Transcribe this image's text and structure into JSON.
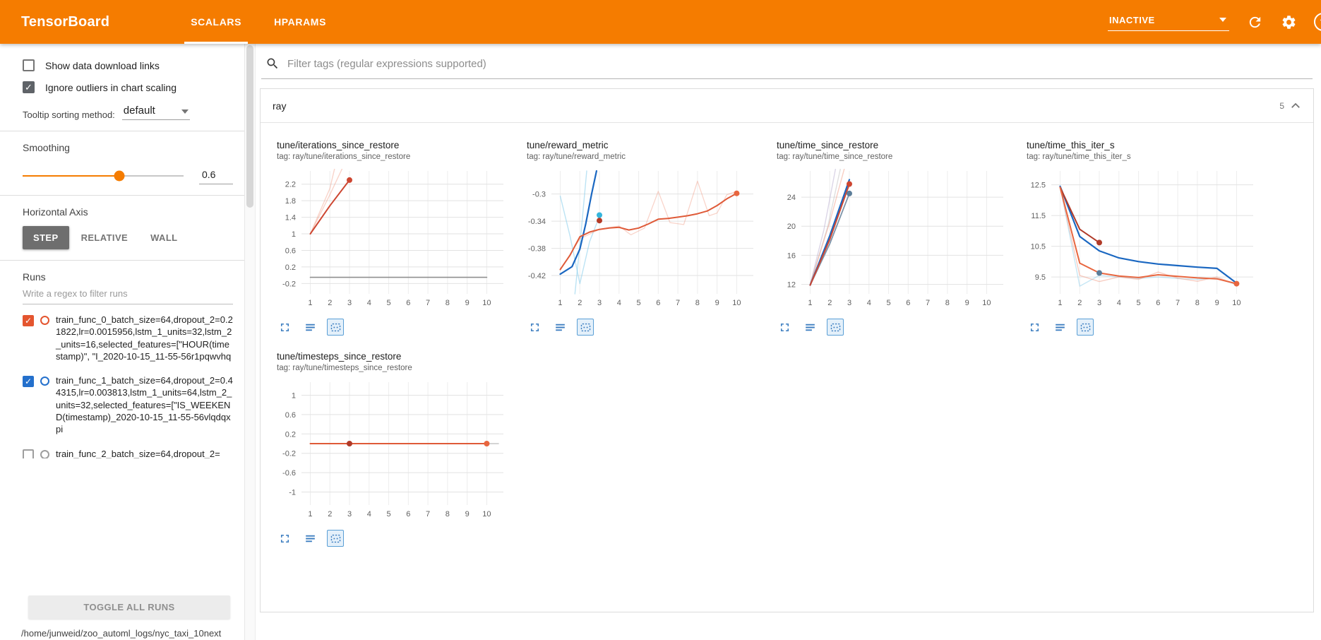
{
  "header": {
    "app_title": "TensorBoard",
    "tabs": [
      {
        "label": "SCALARS",
        "active": true
      },
      {
        "label": "HPARAMS",
        "active": false
      }
    ],
    "status": {
      "label": "INACTIVE"
    },
    "icons": [
      "dropdown-caret-icon",
      "reload-icon",
      "settings-gear-icon",
      "help-icon"
    ],
    "accent_color": "#f57c00"
  },
  "sidebar": {
    "show_download_label": "Show data download links",
    "show_download_checked": false,
    "ignore_outliers_label": "Ignore outliers in chart scaling",
    "ignore_outliers_checked": true,
    "tooltip_label": "Tooltip sorting method:",
    "tooltip_value": "default",
    "smoothing_label": "Smoothing",
    "smoothing_value": "0.6",
    "smoothing_percent": 60,
    "axis_label": "Horizontal Axis",
    "axis_options": [
      "STEP",
      "RELATIVE",
      "WALL"
    ],
    "axis_selected": "STEP",
    "runs_label": "Runs",
    "runs_filter_placeholder": "Write a regex to filter runs",
    "runs": [
      {
        "name": "train_func_0_batch_size=64,dropout_2=0.21822,lr=0.0015956,lstm_1_units=32,lstm_2_units=16,selected_features=[\"HOUR(timestamp)\", \"I_2020-10-15_11-55-56r1pqwvhq",
        "color": "#e4552f",
        "checked": true
      },
      {
        "name": "train_func_1_batch_size=64,dropout_2=0.44315,lr=0.003813,lstm_1_units=64,lstm_2_units=32,selected_features=[\"IS_WEEKEND(timestamp)_2020-10-15_11-55-56vlqdqxpi",
        "color": "#2470cc",
        "checked": true
      },
      {
        "name": "train_func_2_batch_size=64,dropout_2=",
        "color": "#9e9e9e",
        "checked": false
      }
    ],
    "toggle_all_label": "TOGGLE ALL RUNS",
    "log_path": "/home/junweid/zoo_automl_logs/nyc_taxi_10next"
  },
  "main": {
    "filter_placeholder": "Filter tags (regular expressions supported)",
    "filter_icon": "search-icon",
    "category": "ray",
    "category_count": "5",
    "collapse_icon": "chevron-up-icon"
  },
  "chart_actions": [
    {
      "icon": "expand-chart-icon",
      "selected": false
    },
    {
      "icon": "view-data-icon",
      "selected": false
    },
    {
      "icon": "fit-domain-icon",
      "selected": true
    }
  ],
  "chart_data": [
    {
      "type": "line",
      "title": "tune/iterations_since_restore",
      "tag": "tag: ray/tune/iterations_since_restore",
      "xlim": [
        0.55,
        10.85
      ],
      "ylim": [
        -0.45,
        2.52
      ],
      "xticks": [
        1,
        2,
        3,
        4,
        5,
        6,
        7,
        8,
        9,
        10
      ],
      "yticks": [
        -0.2,
        0.2,
        0.6,
        1,
        1.4,
        1.8,
        2.2
      ],
      "series": [
        {
          "color": "#8f8f8f",
          "width": 1.6,
          "opacity": 1,
          "points": [
            [
              1,
              -0.05
            ],
            [
              10,
              -0.05
            ]
          ]
        },
        {
          "color": "#f0937a",
          "width": 1.4,
          "opacity": 0.4,
          "points": [
            [
              1,
              1
            ],
            [
              2,
              2.1
            ],
            [
              2.55,
              3.2
            ]
          ]
        },
        {
          "color": "#f0937a",
          "width": 1.4,
          "opacity": 0.4,
          "points": [
            [
              1,
              1
            ],
            [
              2,
              1.95
            ],
            [
              3,
              2.95
            ],
            [
              3.3,
              3.5
            ]
          ]
        },
        {
          "color": "#cd4631",
          "width": 2,
          "opacity": 1,
          "points": [
            [
              1,
              1
            ],
            [
              2,
              1.68
            ],
            [
              3,
              2.3
            ]
          ]
        }
      ],
      "markers": [
        {
          "color": "#cd4631",
          "x": 3,
          "y": 2.3
        }
      ]
    },
    {
      "type": "line",
      "title": "tune/reward_metric",
      "tag": "tag: ray/tune/reward_metric",
      "xlim": [
        0.55,
        10.85
      ],
      "ylim": [
        -0.447,
        -0.266
      ],
      "xticks": [
        1,
        2,
        3,
        4,
        5,
        6,
        7,
        8,
        9,
        10
      ],
      "yticks": [
        -0.42,
        -0.38,
        -0.34,
        -0.3
      ],
      "series": [
        {
          "color": "#8fd0ec",
          "width": 1.4,
          "opacity": 0.6,
          "points": [
            [
              1,
              -0.303
            ],
            [
              1.5,
              -0.362
            ],
            [
              2,
              -0.432
            ],
            [
              2.5,
              -0.37
            ],
            [
              3,
              -0.333
            ]
          ]
        },
        {
          "color": "#8fd0ec",
          "width": 1.4,
          "opacity": 0.6,
          "points": [
            [
              1.75,
              -0.447
            ],
            [
              2.05,
              -0.36
            ],
            [
              2.35,
              -0.266
            ]
          ]
        },
        {
          "color": "#f0937a",
          "width": 1.3,
          "opacity": 0.4,
          "points": [
            [
              1,
              -0.412
            ],
            [
              2,
              -0.366
            ],
            [
              3,
              -0.352
            ],
            [
              4,
              -0.347
            ],
            [
              4.6,
              -0.36
            ],
            [
              5.3,
              -0.35
            ],
            [
              6,
              -0.296
            ],
            [
              6.6,
              -0.342
            ],
            [
              7.3,
              -0.345
            ],
            [
              8,
              -0.281
            ],
            [
              8.6,
              -0.332
            ],
            [
              9,
              -0.328
            ],
            [
              9.5,
              -0.301
            ],
            [
              10,
              -0.296
            ]
          ]
        },
        {
          "color": "#1a67c1",
          "width": 2.2,
          "opacity": 1,
          "points": [
            [
              1,
              -0.418
            ],
            [
              1.6,
              -0.407
            ],
            [
              2,
              -0.381
            ],
            [
              2.3,
              -0.344
            ],
            [
              2.6,
              -0.3
            ],
            [
              2.85,
              -0.266
            ]
          ]
        },
        {
          "color": "#df5a38",
          "width": 2,
          "opacity": 1,
          "points": [
            [
              1,
              -0.411
            ],
            [
              1.5,
              -0.39
            ],
            [
              2,
              -0.363
            ],
            [
              2.5,
              -0.356
            ],
            [
              3,
              -0.352
            ],
            [
              3.5,
              -0.35
            ],
            [
              4,
              -0.349
            ],
            [
              4.5,
              -0.353
            ],
            [
              5,
              -0.35
            ],
            [
              5.5,
              -0.344
            ],
            [
              6,
              -0.337
            ],
            [
              6.5,
              -0.336
            ],
            [
              7,
              -0.334
            ],
            [
              7.5,
              -0.332
            ],
            [
              8,
              -0.329
            ],
            [
              8.5,
              -0.325
            ],
            [
              9,
              -0.317
            ],
            [
              9.5,
              -0.307
            ],
            [
              10,
              -0.299
            ]
          ]
        }
      ],
      "markers": [
        {
          "color": "#b43a26",
          "x": 3,
          "y": -0.339
        },
        {
          "color": "#35b5dc",
          "x": 3,
          "y": -0.331
        },
        {
          "color": "#e8663f",
          "x": 10,
          "y": -0.299
        }
      ]
    },
    {
      "type": "line",
      "title": "tune/time_since_restore",
      "tag": "tag: ray/tune/time_since_restore",
      "xlim": [
        0.55,
        10.85
      ],
      "ylim": [
        10.7,
        27.6
      ],
      "xticks": [
        1,
        2,
        3,
        4,
        5,
        6,
        7,
        8,
        9,
        10
      ],
      "yticks": [
        12,
        16,
        20,
        24
      ],
      "series": [
        {
          "color": "#b9aecf",
          "width": 1.4,
          "opacity": 0.5,
          "points": [
            [
              1,
              12
            ],
            [
              1.7,
              19.5
            ],
            [
              2.3,
              28
            ]
          ]
        },
        {
          "color": "#c4c4c4",
          "width": 1.4,
          "opacity": 0.55,
          "points": [
            [
              1,
              12
            ],
            [
              1.9,
              20
            ],
            [
              2.55,
              28
            ]
          ]
        },
        {
          "color": "#f0937a",
          "width": 1.4,
          "opacity": 0.45,
          "points": [
            [
              1,
              12
            ],
            [
              2,
              20.6
            ],
            [
              2.75,
              28
            ]
          ]
        },
        {
          "color": "#7d93a8",
          "width": 1.8,
          "opacity": 1,
          "points": [
            [
              1,
              11.9
            ],
            [
              2,
              17.6
            ],
            [
              3,
              24.5
            ]
          ]
        },
        {
          "color": "#1a67c1",
          "width": 2.2,
          "opacity": 1,
          "points": [
            [
              1,
              11.9
            ],
            [
              2,
              18.7
            ],
            [
              3,
              26.4
            ]
          ]
        },
        {
          "color": "#cd4631",
          "width": 2,
          "opacity": 1,
          "points": [
            [
              1,
              11.9
            ],
            [
              2,
              18.2
            ],
            [
              3,
              25.8
            ]
          ]
        }
      ],
      "markers": [
        {
          "color": "#cd4631",
          "x": 3,
          "y": 25.8
        },
        {
          "color": "#5c7d99",
          "x": 3,
          "y": 24.5
        }
      ]
    },
    {
      "type": "line",
      "title": "tune/time_this_iter_s",
      "tag": "tag: ray/tune/time_this_iter_s",
      "xlim": [
        0.55,
        10.85
      ],
      "ylim": [
        8.95,
        12.95
      ],
      "xticks": [
        1,
        2,
        3,
        4,
        5,
        6,
        7,
        8,
        9,
        10
      ],
      "yticks": [
        9.5,
        10.5,
        11.5,
        12.5
      ],
      "series": [
        {
          "color": "#8fd0ec",
          "width": 1.4,
          "opacity": 0.5,
          "points": [
            [
              1,
              12.45
            ],
            [
              2,
              9.2
            ],
            [
              3,
              9.55
            ],
            [
              4,
              9.5
            ],
            [
              5,
              9.45
            ],
            [
              6,
              9.5
            ],
            [
              7,
              9.45
            ],
            [
              8,
              9.42
            ],
            [
              9,
              9.46
            ],
            [
              10,
              9.25
            ]
          ]
        },
        {
          "color": "#f0937a",
          "width": 1.4,
          "opacity": 0.45,
          "points": [
            [
              1,
              12.4
            ],
            [
              2,
              9.55
            ],
            [
              3,
              9.35
            ],
            [
              4,
              9.5
            ],
            [
              5,
              9.42
            ],
            [
              6,
              9.66
            ],
            [
              7,
              9.46
            ],
            [
              8,
              9.36
            ],
            [
              9,
              9.5
            ],
            [
              10,
              9.25
            ]
          ]
        },
        {
          "color": "#1a67c1",
          "width": 2.2,
          "opacity": 1,
          "points": [
            [
              1,
              12.45
            ],
            [
              2,
              10.82
            ],
            [
              3,
              10.35
            ],
            [
              4,
              10.12
            ],
            [
              5,
              10
            ],
            [
              6,
              9.92
            ],
            [
              7,
              9.87
            ],
            [
              8,
              9.82
            ],
            [
              9,
              9.78
            ],
            [
              10,
              9.3
            ]
          ]
        },
        {
          "color": "#b03a28",
          "width": 2,
          "opacity": 1,
          "points": [
            [
              1,
              12.42
            ],
            [
              2,
              11.05
            ],
            [
              3,
              10.62
            ]
          ]
        },
        {
          "color": "#e8663f",
          "width": 2,
          "opacity": 1,
          "points": [
            [
              1,
              12.42
            ],
            [
              2,
              9.95
            ],
            [
              3,
              9.63
            ],
            [
              4,
              9.53
            ],
            [
              5,
              9.48
            ],
            [
              6,
              9.57
            ],
            [
              7,
              9.52
            ],
            [
              8,
              9.47
            ],
            [
              9,
              9.44
            ],
            [
              10,
              9.28
            ]
          ]
        }
      ],
      "markers": [
        {
          "color": "#b03a28",
          "x": 3,
          "y": 10.62
        },
        {
          "color": "#5c7d99",
          "x": 3,
          "y": 9.63
        },
        {
          "color": "#e8663f",
          "x": 10,
          "y": 9.28
        }
      ]
    },
    {
      "type": "line",
      "title": "tune/timesteps_since_restore",
      "tag": "tag: ray/tune/timesteps_since_restore",
      "xlim": [
        0.55,
        10.85
      ],
      "ylim": [
        -1.27,
        1.27
      ],
      "xticks": [
        1,
        2,
        3,
        4,
        5,
        6,
        7,
        8,
        9,
        10
      ],
      "yticks": [
        -1,
        -0.6,
        -0.2,
        0.2,
        0.6,
        1
      ],
      "series": [
        {
          "color": "#9e9e9e",
          "width": 1.3,
          "opacity": 0.7,
          "points": [
            [
              1,
              0
            ],
            [
              10.6,
              0
            ]
          ]
        },
        {
          "color": "#df5a38",
          "width": 2,
          "opacity": 1,
          "points": [
            [
              1,
              0
            ],
            [
              10,
              0
            ]
          ]
        }
      ],
      "markers": [
        {
          "color": "#b03a28",
          "x": 3,
          "y": 0
        },
        {
          "color": "#e8663f",
          "x": 10,
          "y": 0
        }
      ]
    }
  ]
}
